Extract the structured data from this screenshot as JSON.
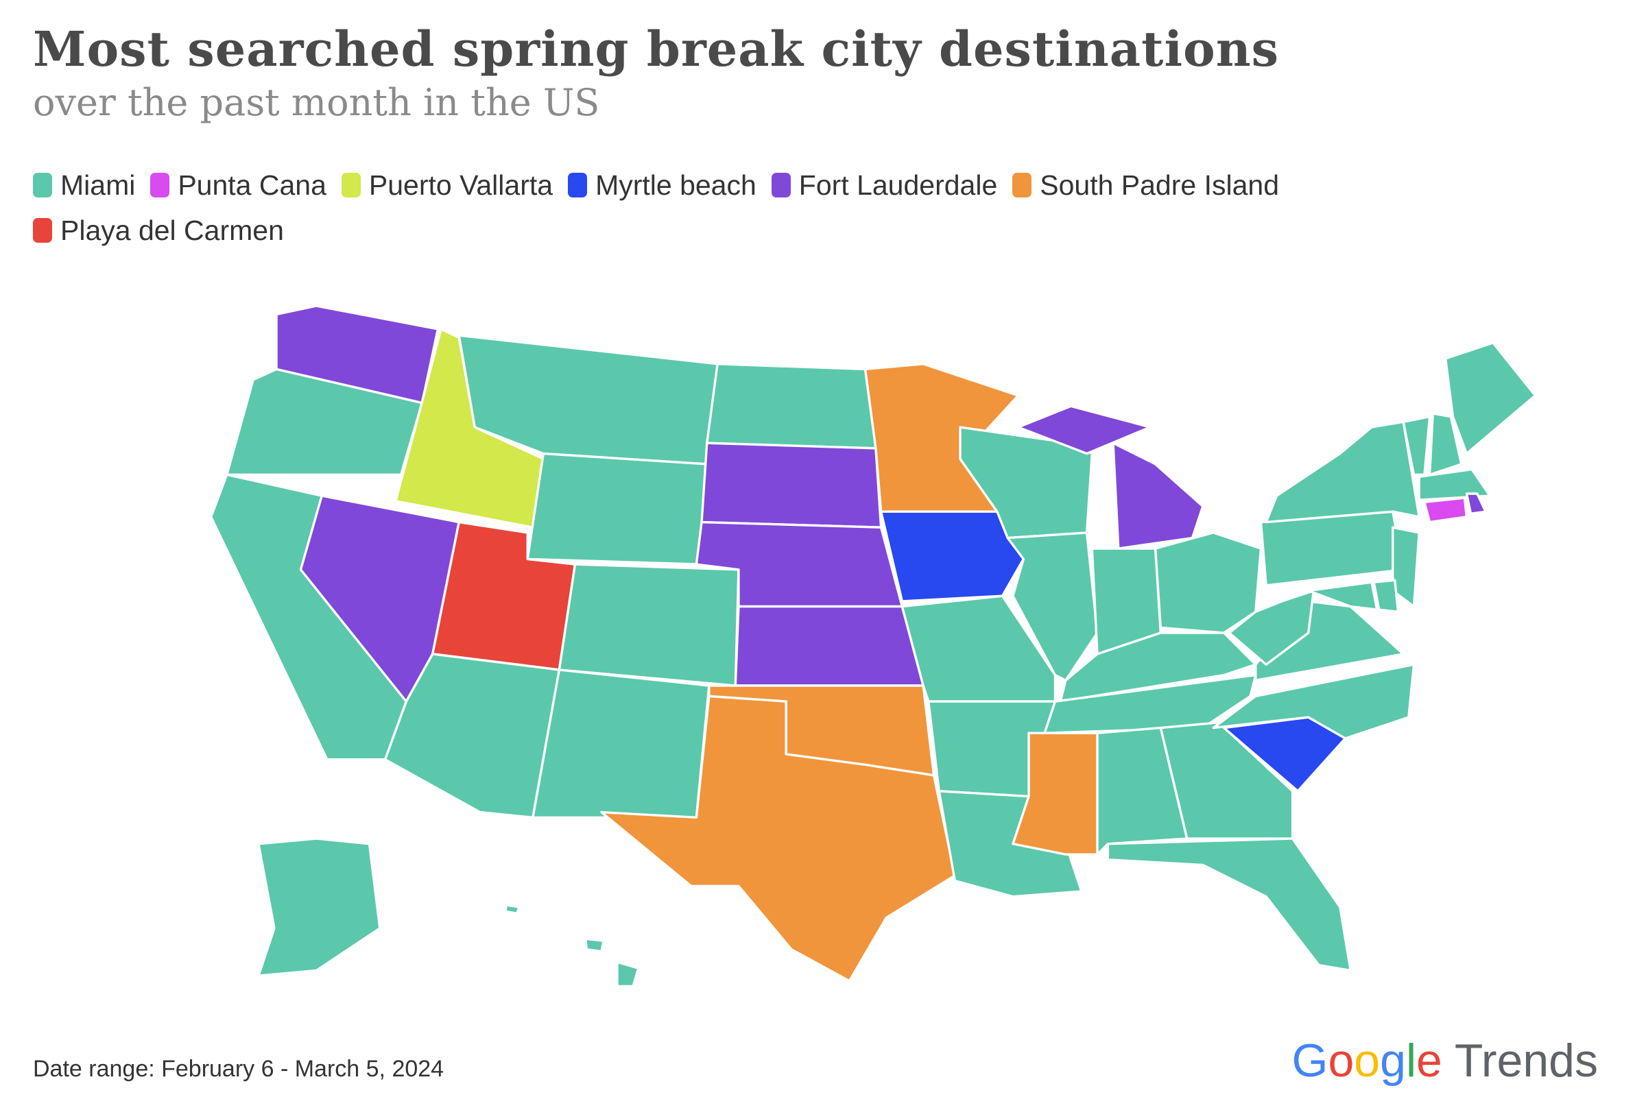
{
  "header": {
    "title": "Most searched spring break city destinations",
    "subtitle": "over the past month in the US"
  },
  "legend": [
    {
      "label": "Miami",
      "color": "#5bc8ab"
    },
    {
      "label": "Punta Cana",
      "color": "#d94af0"
    },
    {
      "label": "Puerto Vallarta",
      "color": "#d3e84a"
    },
    {
      "label": "Myrtle beach",
      "color": "#2848f0"
    },
    {
      "label": "Fort Lauderdale",
      "color": "#8048d8"
    },
    {
      "label": "South Padre Island",
      "color": "#f0953c"
    },
    {
      "label": "Playa del Carmen",
      "color": "#e8443a"
    }
  ],
  "footer": {
    "date_range": "Date range: February 6 - March 5, 2024",
    "logo_google": "Google",
    "logo_trends": "Trends"
  },
  "chart_data": {
    "type": "choropleth",
    "region": "United States",
    "regions": {
      "WA": "Fort Lauderdale",
      "OR": "Miami",
      "CA": "Miami",
      "NV": "Fort Lauderdale",
      "ID": "Puerto Vallarta",
      "MT": "Miami",
      "WY": "Miami",
      "UT": "Playa del Carmen",
      "CO": "Miami",
      "AZ": "Miami",
      "NM": "Miami",
      "ND": "Miami",
      "SD": "Fort Lauderdale",
      "NE": "Fort Lauderdale",
      "KS": "Fort Lauderdale",
      "OK": "South Padre Island",
      "TX": "South Padre Island",
      "MN": "South Padre Island",
      "IA": "Myrtle beach",
      "MO": "Miami",
      "AR": "Miami",
      "LA": "Miami",
      "WI": "Miami",
      "MI": "Fort Lauderdale",
      "IL": "Miami",
      "IN": "Miami",
      "OH": "Miami",
      "KY": "Miami",
      "TN": "Miami",
      "MS": "South Padre Island",
      "AL": "Miami",
      "GA": "Miami",
      "FL": "Miami",
      "SC": "Myrtle beach",
      "NC": "Miami",
      "VA": "Miami",
      "WV": "Miami",
      "PA": "Miami",
      "NY": "Miami",
      "NJ": "Miami",
      "MD": "Miami",
      "DE": "Miami",
      "VT": "Miami",
      "NH": "Miami",
      "ME": "Miami",
      "MA": "Miami",
      "CT": "Punta Cana",
      "RI": "Fort Lauderdale",
      "AK": "Miami",
      "HI": "Miami"
    }
  }
}
